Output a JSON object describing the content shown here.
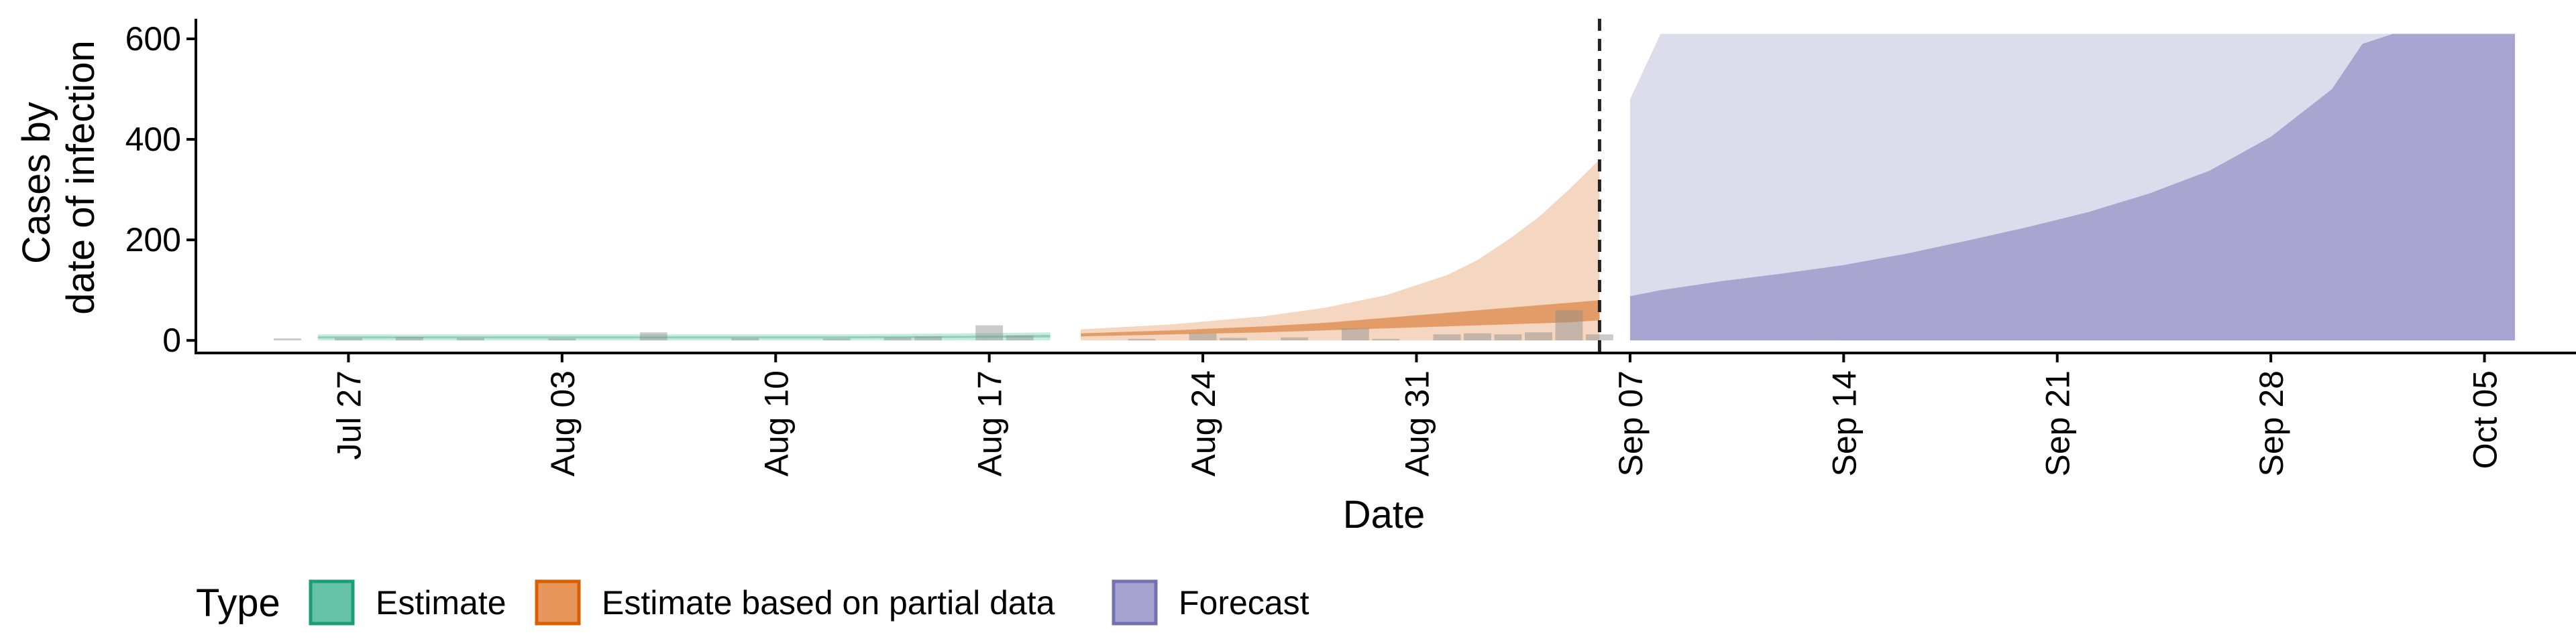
{
  "chart_data": {
    "type": "area",
    "title": "",
    "xlabel": "Date",
    "ylabel_lines": [
      "Cases by",
      "date of infection"
    ],
    "x_ticks": [
      {
        "date": "2020-07-27",
        "label": "Jul 27"
      },
      {
        "date": "2020-08-03",
        "label": "Aug 03"
      },
      {
        "date": "2020-08-10",
        "label": "Aug 10"
      },
      {
        "date": "2020-08-17",
        "label": "Aug 17"
      },
      {
        "date": "2020-08-24",
        "label": "Aug 24"
      },
      {
        "date": "2020-08-31",
        "label": "Aug 31"
      },
      {
        "date": "2020-09-07",
        "label": "Sep 07"
      },
      {
        "date": "2020-09-14",
        "label": "Sep 14"
      },
      {
        "date": "2020-09-21",
        "label": "Sep 21"
      },
      {
        "date": "2020-09-28",
        "label": "Sep 28"
      },
      {
        "date": "2020-10-05",
        "label": "Oct 05"
      }
    ],
    "xlim": [
      "2020-07-22",
      "2020-10-08"
    ],
    "ylim": [
      -25,
      640
    ],
    "y_ticks": [
      0,
      200,
      400,
      600
    ],
    "grid": false,
    "forecast_start_line": "2020-09-06",
    "legend": {
      "title": "Type",
      "position": "bottom",
      "items": [
        {
          "label": "Estimate",
          "fill": "#66c2a5",
          "stroke": "#1b9e77"
        },
        {
          "label": "Estimate based on partial data",
          "fill": "#e8965c",
          "stroke": "#d95f02"
        },
        {
          "label": "Forecast",
          "fill": "#a8a4d0",
          "stroke": "#7570b3"
        }
      ]
    },
    "series": [
      {
        "name": "Estimate",
        "color_outer": "#c8ebdf",
        "color_inner": "#8ed1b8",
        "x": [
          "2020-07-26",
          "2020-08-01",
          "2020-08-07",
          "2020-08-12",
          "2020-08-16",
          "2020-08-19"
        ],
        "outer_lower": [
          0,
          0,
          0,
          0,
          0,
          0
        ],
        "outer_upper": [
          12,
          12,
          12,
          12,
          14,
          16
        ],
        "inner_lower": [
          4,
          4,
          4,
          4,
          5,
          6
        ],
        "inner_upper": [
          8,
          8,
          8,
          8,
          9,
          11
        ]
      },
      {
        "name": "Estimate based on partial data",
        "color_outer": "#f5d6c0",
        "color_inner": "#e39b67",
        "x": [
          "2020-08-20",
          "2020-08-23",
          "2020-08-26",
          "2020-08-28",
          "2020-08-30",
          "2020-09-01",
          "2020-09-02",
          "2020-09-03",
          "2020-09-04",
          "2020-09-05",
          "2020-09-06"
        ],
        "outer_lower": [
          0,
          0,
          0,
          0,
          0,
          0,
          0,
          0,
          0,
          0,
          0
        ],
        "outer_upper": [
          22,
          32,
          48,
          65,
          90,
          130,
          160,
          200,
          245,
          300,
          360
        ],
        "inner_lower": [
          8,
          12,
          16,
          20,
          24,
          28,
          30,
          32,
          34,
          36,
          40
        ],
        "inner_upper": [
          14,
          20,
          28,
          35,
          45,
          55,
          60,
          65,
          70,
          75,
          80
        ]
      },
      {
        "name": "Forecast",
        "color_outer": "#dddcec",
        "color_inner": "#a8a5d1",
        "x": [
          "2020-09-07",
          "2020-09-08",
          "2020-09-10",
          "2020-09-12",
          "2020-09-14",
          "2020-09-16",
          "2020-09-18",
          "2020-09-20",
          "2020-09-22",
          "2020-09-24",
          "2020-09-26",
          "2020-09-28",
          "2020-09-30",
          "2020-10-01",
          "2020-10-02",
          "2020-10-03",
          "2020-10-04",
          "2020-10-05",
          "2020-10-06"
        ],
        "outer_lower": [
          10,
          8,
          4,
          1,
          0,
          0,
          0,
          0,
          0,
          0,
          0,
          0,
          0,
          0,
          0,
          0,
          0,
          0,
          0
        ],
        "outer_upper": [
          480,
          610,
          610,
          610,
          610,
          610,
          610,
          610,
          610,
          610,
          610,
          610,
          610,
          610,
          610,
          610,
          610,
          610,
          610
        ],
        "inner_lower": [
          0,
          0,
          0,
          0,
          0,
          0,
          0,
          0,
          0,
          0,
          0,
          0,
          0,
          0,
          0,
          0,
          0,
          0,
          0
        ],
        "inner_upper": [
          88,
          100,
          118,
          133,
          150,
          172,
          198,
          225,
          255,
          292,
          338,
          405,
          500,
          590,
          610,
          610,
          610,
          610,
          610
        ]
      }
    ],
    "reported_cases": [
      {
        "date": "2020-07-25",
        "value": 4
      },
      {
        "date": "2020-07-27",
        "value": 5
      },
      {
        "date": "2020-07-29",
        "value": 7
      },
      {
        "date": "2020-07-31",
        "value": 5
      },
      {
        "date": "2020-08-03",
        "value": 4
      },
      {
        "date": "2020-08-06",
        "value": 16
      },
      {
        "date": "2020-08-09",
        "value": 5
      },
      {
        "date": "2020-08-12",
        "value": 4
      },
      {
        "date": "2020-08-14",
        "value": 6
      },
      {
        "date": "2020-08-15",
        "value": 8
      },
      {
        "date": "2020-08-17",
        "value": 30
      },
      {
        "date": "2020-08-18",
        "value": 10
      },
      {
        "date": "2020-08-22",
        "value": 3
      },
      {
        "date": "2020-08-24",
        "value": 14
      },
      {
        "date": "2020-08-25",
        "value": 5
      },
      {
        "date": "2020-08-27",
        "value": 6
      },
      {
        "date": "2020-08-29",
        "value": 24
      },
      {
        "date": "2020-08-30",
        "value": 3
      },
      {
        "date": "2020-09-01",
        "value": 12
      },
      {
        "date": "2020-09-02",
        "value": 14
      },
      {
        "date": "2020-09-03",
        "value": 12
      },
      {
        "date": "2020-09-04",
        "value": 16
      },
      {
        "date": "2020-09-05",
        "value": 60
      },
      {
        "date": "2020-09-06",
        "value": 12
      }
    ]
  }
}
